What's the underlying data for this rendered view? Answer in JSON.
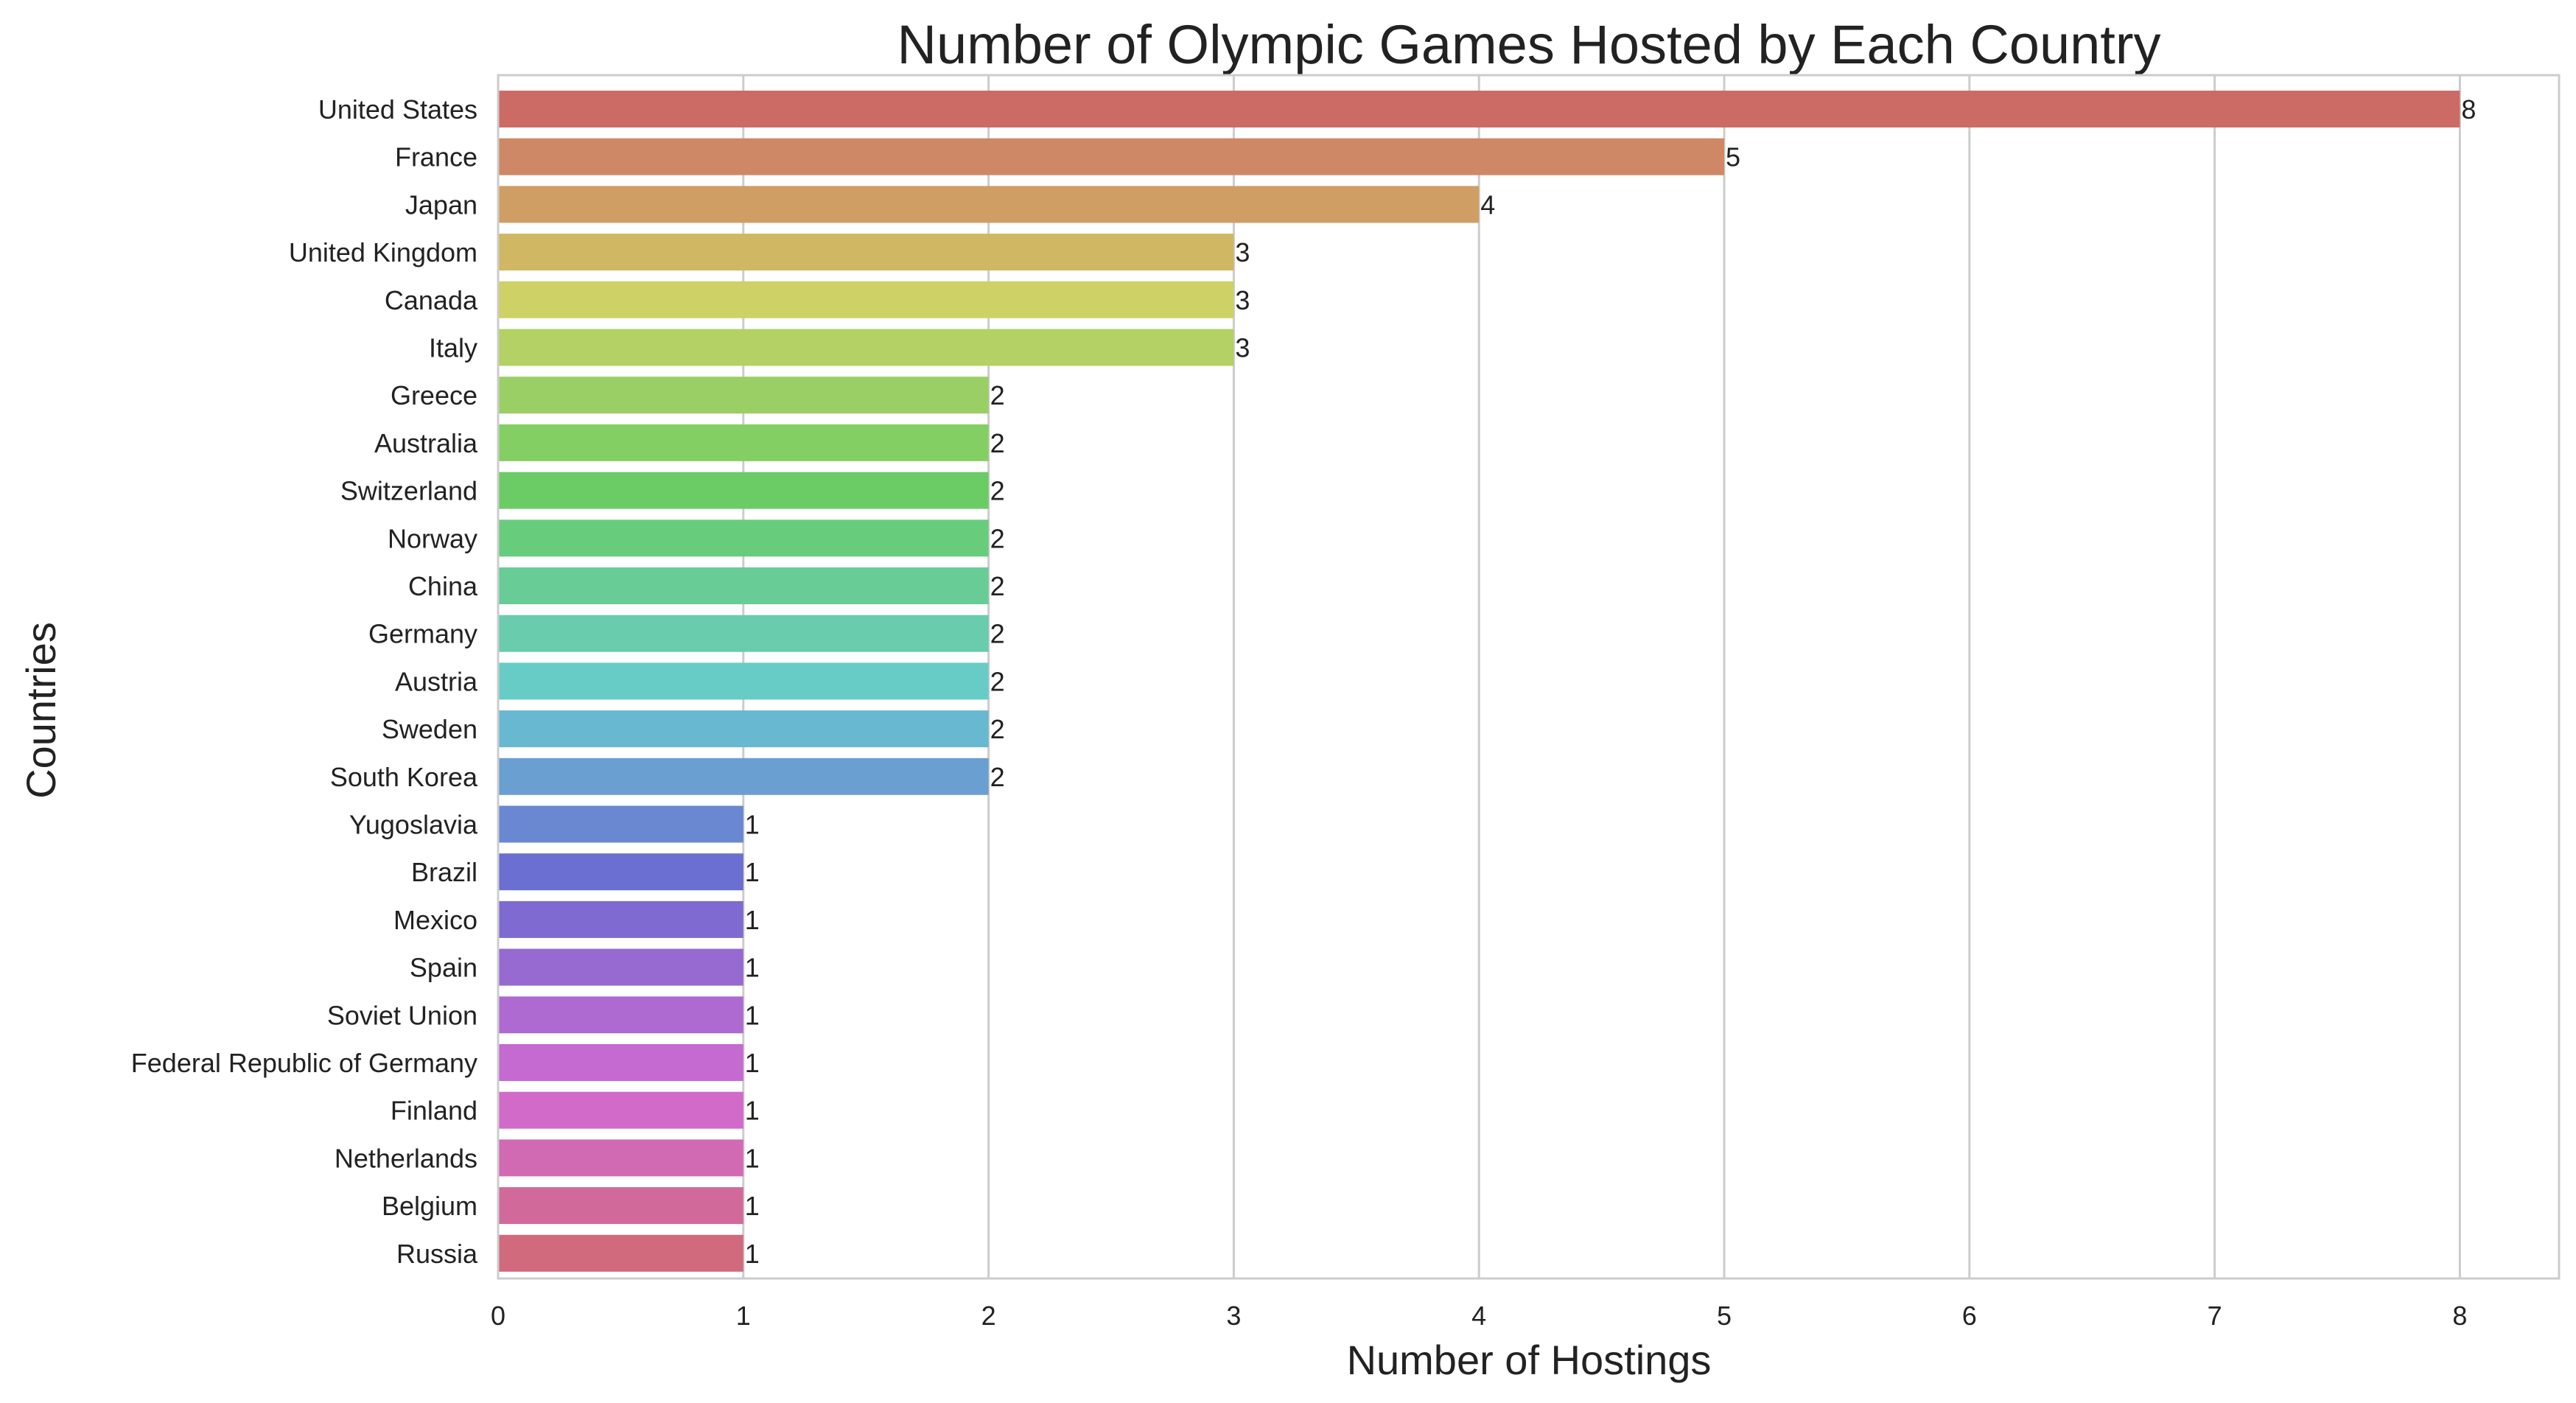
{
  "chart_data": {
    "type": "bar",
    "orientation": "horizontal",
    "title": "Number of Olympic Games Hosted by Each Country",
    "xlabel": "Number of Hostings",
    "ylabel": "Countries",
    "xlim": [
      0,
      8.4
    ],
    "xticks": [
      0,
      1,
      2,
      3,
      4,
      5,
      6,
      7,
      8
    ],
    "grid": "vertical",
    "categories": [
      "United States",
      "France",
      "Japan",
      "United Kingdom",
      "Canada",
      "Italy",
      "Greece",
      "Australia",
      "Switzerland",
      "Norway",
      "China",
      "Germany",
      "Austria",
      "Sweden",
      "South Korea",
      "Yugoslavia",
      "Brazil",
      "Mexico",
      "Spain",
      "Soviet Union",
      "Federal Republic of Germany",
      "Finland",
      "Netherlands",
      "Belgium",
      "Russia"
    ],
    "values": [
      8,
      5,
      4,
      3,
      3,
      3,
      2,
      2,
      2,
      2,
      2,
      2,
      2,
      2,
      2,
      1,
      1,
      1,
      1,
      1,
      1,
      1,
      1,
      1,
      1
    ],
    "data_labels": [
      "8",
      "5",
      "4",
      "3",
      "3",
      "3",
      "2",
      "2",
      "2",
      "2",
      "2",
      "2",
      "2",
      "2",
      "2",
      "1",
      "1",
      "1",
      "1",
      "1",
      "1",
      "1",
      "1",
      "1",
      "1"
    ],
    "colors": [
      "#cc6b66",
      "#cf8866",
      "#cf9e64",
      "#d0b763",
      "#cdd166",
      "#b4d166",
      "#9acf66",
      "#84cf63",
      "#6bcc66",
      "#68cc7d",
      "#68cc97",
      "#68ccad",
      "#68ccc6",
      "#68b8d1",
      "#6a9fd1",
      "#6a87d1",
      "#6a6fd1",
      "#7e6ad1",
      "#966ad1",
      "#ae6ad1",
      "#c46ad1",
      "#d16ac9",
      "#d16ab3",
      "#d16a9b",
      "#d16a7c"
    ]
  }
}
